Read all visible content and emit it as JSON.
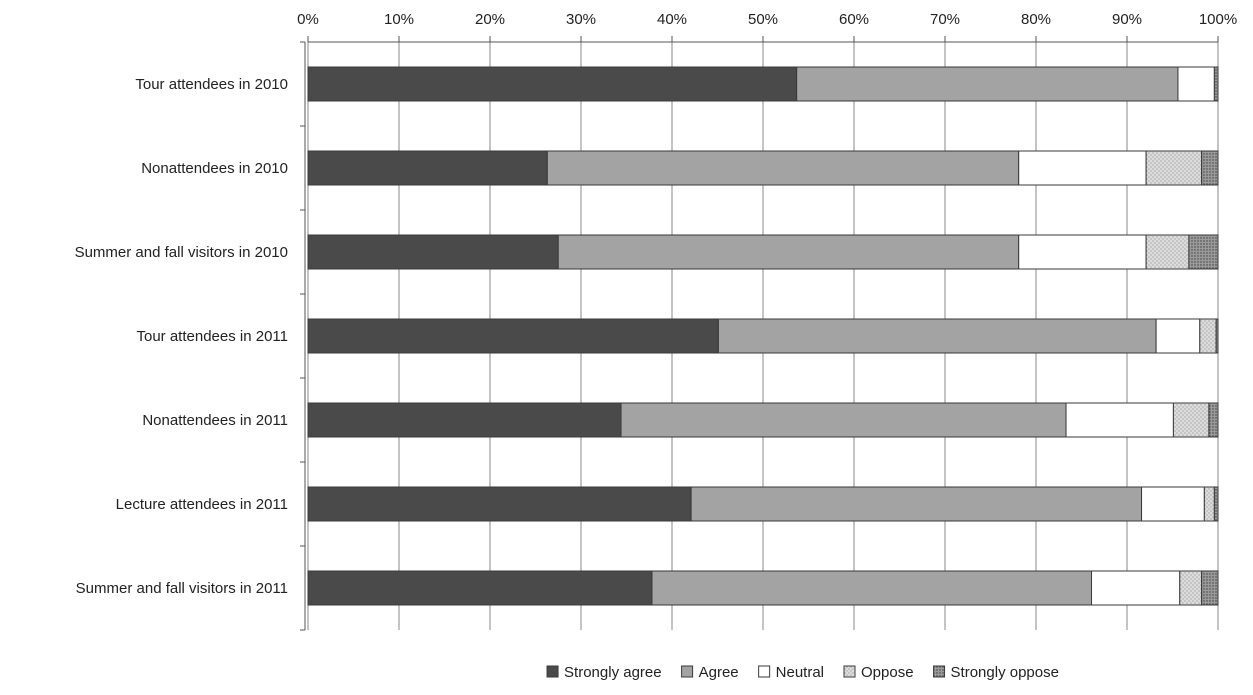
{
  "chart_data": {
    "type": "bar",
    "orientation": "horizontal",
    "stacked": true,
    "percent": true,
    "title": "",
    "xlabel": "",
    "ylabel": "",
    "xlim": [
      0,
      100
    ],
    "x_ticks": [
      "0%",
      "10%",
      "20%",
      "30%",
      "40%",
      "50%",
      "60%",
      "70%",
      "80%",
      "90%",
      "100%"
    ],
    "grid": "vertical",
    "legend_position": "bottom",
    "categories": [
      "Tour attendees in 2010",
      "Nonattendees in 2010",
      "Summer and fall visitors in 2010",
      "Tour attendees in 2011",
      "Nonattendees in 2011",
      "Lecture attendees in 2011",
      "Summer and fall visitors in 2011"
    ],
    "series": [
      {
        "name": "Strongly agree",
        "color": "#4a4a4a",
        "pattern": "solid",
        "values": [
          53.7,
          26.3,
          27.5,
          45.1,
          34.4,
          42.1,
          37.8
        ]
      },
      {
        "name": "Agree",
        "color": "#a3a3a3",
        "pattern": "solid",
        "values": [
          41.9,
          51.8,
          50.6,
          48.1,
          48.9,
          49.5,
          48.3
        ]
      },
      {
        "name": "Neutral",
        "color": "#ffffff",
        "pattern": "solid",
        "values": [
          4.0,
          14.0,
          14.0,
          4.8,
          11.8,
          6.9,
          9.7
        ]
      },
      {
        "name": "Oppose",
        "color": "#d6d6d6",
        "pattern": "dots",
        "values": [
          0.0,
          6.1,
          4.7,
          1.8,
          3.9,
          1.1,
          2.4
        ]
      },
      {
        "name": "Strongly oppose",
        "color": "#8a8a8a",
        "pattern": "dense-dots",
        "values": [
          0.4,
          1.8,
          3.2,
          0.2,
          1.0,
          0.4,
          1.8
        ]
      }
    ]
  }
}
